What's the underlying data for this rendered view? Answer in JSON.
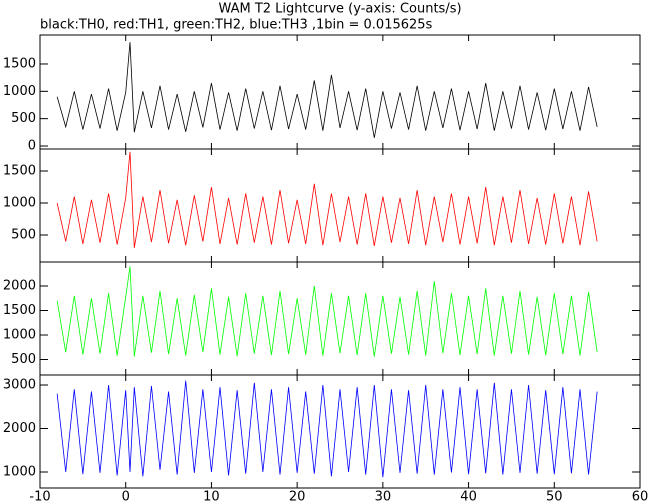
{
  "title": "WAM T2 Lightcurve (y-axis: Counts/s)",
  "subtitle": "black:TH0, red:TH1, green:TH2, blue:TH3 ,1bin = 0.015625s",
  "chart_data": [
    {
      "type": "line",
      "x": [
        -8,
        -7,
        -6,
        -5,
        -4,
        -3,
        -2,
        -1,
        0,
        0.5,
        1,
        2,
        3,
        4,
        5,
        6,
        7,
        8,
        9,
        10,
        11,
        12,
        13,
        14,
        15,
        16,
        17,
        18,
        19,
        20,
        21,
        22,
        23,
        24,
        25,
        26,
        27,
        28,
        29,
        30,
        31,
        32,
        33,
        34,
        35,
        36,
        37,
        38,
        39,
        40,
        41,
        42,
        43,
        44,
        45,
        46,
        47,
        48,
        49,
        50,
        51,
        52,
        53,
        54,
        55
      ],
      "series": [
        {
          "name": "TH0",
          "color": "#000000",
          "values": [
            900,
            350,
            1000,
            300,
            950,
            320,
            1050,
            280,
            980,
            1900,
            250,
            1000,
            330,
            1100,
            300,
            950,
            260,
            1000,
            340,
            1150,
            300,
            980,
            280,
            1050,
            320,
            1000,
            290,
            1100,
            310,
            950,
            300,
            1200,
            280,
            1300,
            330,
            1000,
            290,
            1050,
            150,
            1000,
            320,
            980,
            300,
            1100,
            280,
            1000,
            330,
            1050,
            290,
            1000,
            310,
            1150,
            280,
            1000,
            320,
            1100,
            300,
            980,
            290,
            1050,
            310,
            1000,
            280,
            1080,
            350
          ]
        }
      ],
      "xlim": [
        -10,
        60
      ],
      "xticks": [
        -10,
        0,
        10,
        20,
        30,
        40,
        50,
        60
      ],
      "ylim": [
        -55,
        2030
      ],
      "yticks": [
        0,
        500,
        1000,
        1500
      ]
    },
    {
      "type": "line",
      "x": [
        -8,
        -7,
        -6,
        -5,
        -4,
        -3,
        -2,
        -1,
        0,
        0.5,
        1,
        2,
        3,
        4,
        5,
        6,
        7,
        8,
        9,
        10,
        11,
        12,
        13,
        14,
        15,
        16,
        17,
        18,
        19,
        20,
        21,
        22,
        23,
        24,
        25,
        26,
        27,
        28,
        29,
        30,
        31,
        32,
        33,
        34,
        35,
        36,
        37,
        38,
        39,
        40,
        41,
        42,
        43,
        44,
        45,
        46,
        47,
        48,
        49,
        50,
        51,
        52,
        53,
        54,
        55
      ],
      "series": [
        {
          "name": "TH1",
          "color": "#ff0000",
          "values": [
            1000,
            400,
            1100,
            360,
            1050,
            380,
            1150,
            350,
            1080,
            1800,
            300,
            1100,
            390,
            1200,
            370,
            1050,
            340,
            1120,
            400,
            1250,
            360,
            1080,
            350,
            1150,
            380,
            1100,
            350,
            1200,
            370,
            1050,
            360,
            1300,
            340,
            1150,
            390,
            1100,
            350,
            1150,
            330,
            1100,
            380,
            1080,
            360,
            1200,
            340,
            1100,
            390,
            1150,
            350,
            1100,
            370,
            1250,
            340,
            1100,
            380,
            1200,
            360,
            1080,
            350,
            1150,
            370,
            1100,
            340,
            1180,
            400
          ]
        }
      ],
      "xlim": [
        -10,
        60
      ],
      "xticks": [
        -10,
        0,
        10,
        20,
        30,
        40,
        50,
        60
      ],
      "ylim": [
        78,
        1844
      ],
      "yticks": [
        500,
        1000,
        1500
      ]
    },
    {
      "type": "line",
      "x": [
        -8,
        -7,
        -6,
        -5,
        -4,
        -3,
        -2,
        -1,
        0,
        0.5,
        1,
        2,
        3,
        4,
        5,
        6,
        7,
        8,
        9,
        10,
        11,
        12,
        13,
        14,
        15,
        16,
        17,
        18,
        19,
        20,
        21,
        22,
        23,
        24,
        25,
        26,
        27,
        28,
        29,
        30,
        31,
        32,
        33,
        34,
        35,
        36,
        37,
        38,
        39,
        40,
        41,
        42,
        43,
        44,
        45,
        46,
        47,
        48,
        49,
        50,
        51,
        52,
        53,
        54,
        55
      ],
      "series": [
        {
          "name": "TH2",
          "color": "#00ff00",
          "values": [
            1700,
            650,
            1800,
            600,
            1750,
            620,
            1850,
            580,
            1780,
            2400,
            560,
            1800,
            640,
            1900,
            610,
            1750,
            580,
            1820,
            650,
            1950,
            600,
            1780,
            570,
            1850,
            620,
            1800,
            590,
            1900,
            610,
            1750,
            600,
            2000,
            580,
            1850,
            630,
            1800,
            590,
            1850,
            560,
            1800,
            620,
            1780,
            600,
            1900,
            580,
            2100,
            630,
            1850,
            590,
            1800,
            610,
            1950,
            580,
            1800,
            620,
            1900,
            600,
            1780,
            590,
            1850,
            610,
            1800,
            580,
            1880,
            650
          ]
        }
      ],
      "xlim": [
        -10,
        60
      ],
      "xticks": [
        -10,
        0,
        10,
        20,
        30,
        40,
        50,
        60
      ],
      "ylim": [
        184,
        2490
      ],
      "yticks": [
        500,
        1000,
        1500,
        2000
      ]
    },
    {
      "type": "line",
      "x": [
        -8,
        -7,
        -6,
        -5,
        -4,
        -3,
        -2,
        -1,
        0,
        0.5,
        1,
        2,
        3,
        4,
        5,
        6,
        7,
        8,
        9,
        10,
        11,
        12,
        13,
        14,
        15,
        16,
        17,
        18,
        19,
        20,
        21,
        22,
        23,
        24,
        25,
        26,
        27,
        28,
        29,
        30,
        31,
        32,
        33,
        34,
        35,
        36,
        37,
        38,
        39,
        40,
        41,
        42,
        43,
        44,
        45,
        46,
        47,
        48,
        49,
        50,
        51,
        52,
        53,
        54,
        55
      ],
      "series": [
        {
          "name": "TH3",
          "color": "#0000ff",
          "values": [
            2800,
            1000,
            2900,
            950,
            2850,
            980,
            3000,
            920,
            2880,
            1000,
            2950,
            900,
            2980,
            1050,
            2850,
            940,
            3100,
            980,
            2900,
            1000,
            2950,
            920,
            2880,
            960,
            3050,
            1000,
            2900,
            940,
            2950,
            980,
            2850,
            960,
            3000,
            900,
            2900,
            1000,
            2950,
            940,
            3000,
            880,
            2900,
            980,
            2880,
            960,
            3000,
            940,
            2900,
            990,
            2950,
            950,
            2900,
            970,
            3050,
            940,
            2900,
            980,
            3000,
            960,
            2880,
            950,
            2950,
            970,
            2900,
            940,
            2850
          ]
        }
      ],
      "xlim": [
        -10,
        60
      ],
      "xticks": [
        -10,
        0,
        10,
        20,
        30,
        40,
        50,
        60
      ],
      "xticklabels": true,
      "ylim": [
        632,
        3230
      ],
      "yticks": [
        1000,
        2000,
        3000
      ]
    }
  ]
}
